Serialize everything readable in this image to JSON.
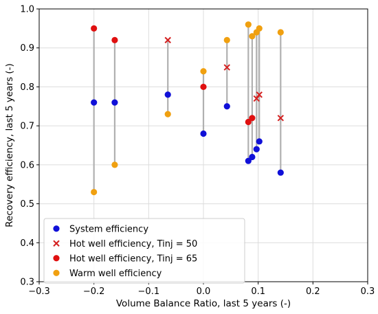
{
  "chart_data": {
    "type": "scatter",
    "xlabel": "Volume Balance Ratio, last 5 years (-)",
    "ylabel": "Recovery efficiency, last 5 years (-)",
    "xlim": [
      -0.3,
      0.3
    ],
    "ylim": [
      0.3,
      1.0
    ],
    "xticks": [
      "−0.3",
      "−0.2",
      "−0.1",
      "0.0",
      "0.1",
      "0.2",
      "0.3"
    ],
    "xtick_values": [
      -0.3,
      -0.2,
      -0.1,
      0.0,
      0.1,
      0.2,
      0.3
    ],
    "yticks": [
      "0.3",
      "0.4",
      "0.5",
      "0.6",
      "0.7",
      "0.8",
      "0.9",
      "1.0"
    ],
    "ytick_values": [
      0.3,
      0.4,
      0.5,
      0.6,
      0.7,
      0.8,
      0.9,
      1.0
    ],
    "grid": true,
    "legend_position": "lower-left",
    "connector_color": "#b0b0b0",
    "connectors": [
      {
        "x": -0.2,
        "y0": 0.53,
        "y1": 0.95
      },
      {
        "x": -0.162,
        "y0": 0.6,
        "y1": 0.92
      },
      {
        "x": -0.065,
        "y0": 0.73,
        "y1": 0.92
      },
      {
        "x": 0.0,
        "y0": 0.68,
        "y1": 0.84
      },
      {
        "x": 0.043,
        "y0": 0.75,
        "y1": 0.92
      },
      {
        "x": 0.082,
        "y0": 0.61,
        "y1": 0.96
      },
      {
        "x": 0.089,
        "y0": 0.62,
        "y1": 0.93
      },
      {
        "x": 0.097,
        "y0": 0.64,
        "y1": 0.94
      },
      {
        "x": 0.102,
        "y0": 0.66,
        "y1": 0.95
      },
      {
        "x": 0.141,
        "y0": 0.58,
        "y1": 0.94
      }
    ],
    "series": [
      {
        "name": "System efficiency",
        "marker": "circle",
        "color": "#1010d8",
        "points": [
          {
            "x": -0.2,
            "y": 0.76
          },
          {
            "x": -0.162,
            "y": 0.76
          },
          {
            "x": -0.065,
            "y": 0.78
          },
          {
            "x": 0.0,
            "y": 0.68
          },
          {
            "x": 0.043,
            "y": 0.75
          },
          {
            "x": 0.082,
            "y": 0.61
          },
          {
            "x": 0.089,
            "y": 0.62
          },
          {
            "x": 0.097,
            "y": 0.64
          },
          {
            "x": 0.102,
            "y": 0.66
          },
          {
            "x": 0.141,
            "y": 0.58
          }
        ]
      },
      {
        "name": "Hot well efficiency, Tinj = 50",
        "marker": "x",
        "color": "#d42020",
        "points": [
          {
            "x": -0.065,
            "y": 0.92
          },
          {
            "x": 0.043,
            "y": 0.85
          },
          {
            "x": 0.097,
            "y": 0.77
          },
          {
            "x": 0.102,
            "y": 0.78
          },
          {
            "x": 0.141,
            "y": 0.72
          }
        ]
      },
      {
        "name": "Hot well efficiency, Tinj = 65",
        "marker": "circle",
        "color": "#e01010",
        "points": [
          {
            "x": -0.2,
            "y": 0.95
          },
          {
            "x": -0.162,
            "y": 0.92
          },
          {
            "x": 0.0,
            "y": 0.8
          },
          {
            "x": 0.082,
            "y": 0.71
          },
          {
            "x": 0.089,
            "y": 0.72
          }
        ]
      },
      {
        "name": "Warm well efficiency",
        "marker": "circle",
        "color": "#f0a010",
        "points": [
          {
            "x": -0.2,
            "y": 0.53
          },
          {
            "x": -0.162,
            "y": 0.6
          },
          {
            "x": -0.065,
            "y": 0.73
          },
          {
            "x": 0.0,
            "y": 0.84
          },
          {
            "x": 0.043,
            "y": 0.92
          },
          {
            "x": 0.082,
            "y": 0.96
          },
          {
            "x": 0.089,
            "y": 0.93
          },
          {
            "x": 0.097,
            "y": 0.94
          },
          {
            "x": 0.102,
            "y": 0.95
          },
          {
            "x": 0.141,
            "y": 0.94
          }
        ]
      }
    ]
  }
}
